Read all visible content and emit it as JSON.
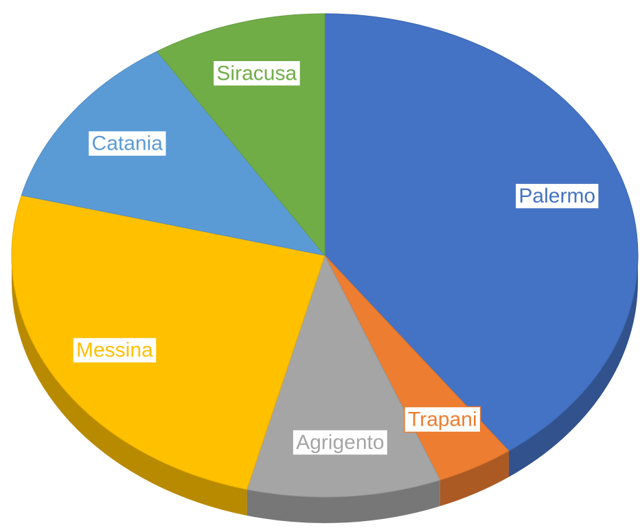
{
  "chart_data": {
    "type": "pie",
    "categories": [
      "Palermo",
      "Trapani",
      "Agrigento",
      "Messina",
      "Catania",
      "Siracusa"
    ],
    "values": [
      40,
      4,
      10,
      25,
      12,
      9
    ],
    "colors": [
      "#4472c4",
      "#ed7d31",
      "#a5a5a5",
      "#ffc000",
      "#5b9bd5",
      "#70ad47"
    ]
  }
}
